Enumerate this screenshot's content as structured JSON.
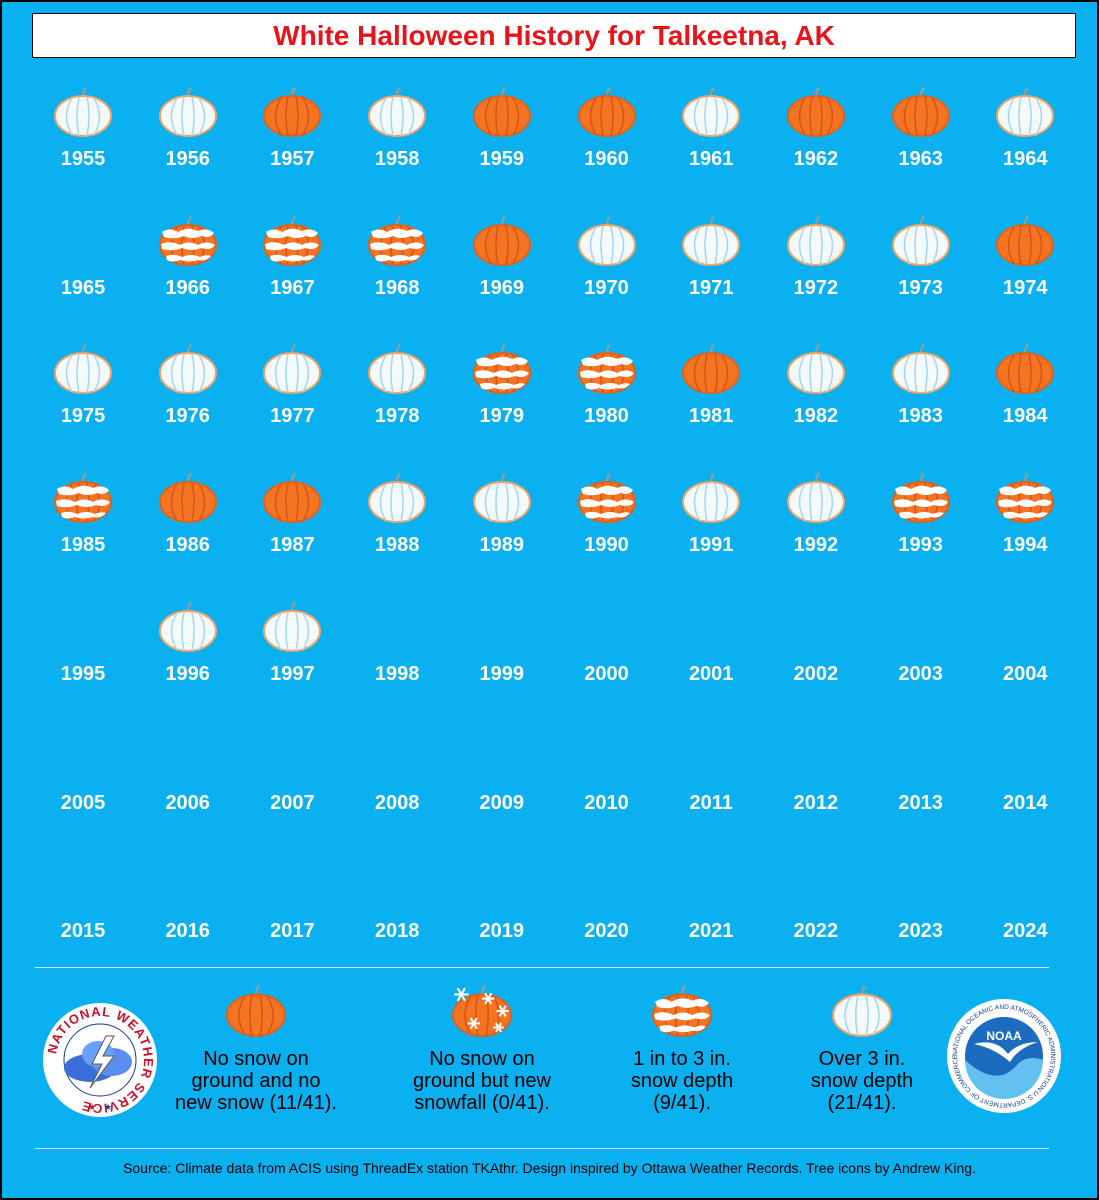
{
  "title": "White Halloween History for Talkeetna, AK",
  "colors": {
    "background": "#0AB0F0",
    "title_text": "#E8141B",
    "pumpkin_orange": "#F47421",
    "pumpkin_white": "#F4F9FC"
  },
  "years": [
    {
      "year": "1955",
      "category": "over3"
    },
    {
      "year": "1956",
      "category": "over3"
    },
    {
      "year": "1957",
      "category": "none"
    },
    {
      "year": "1958",
      "category": "over3"
    },
    {
      "year": "1959",
      "category": "none"
    },
    {
      "year": "1960",
      "category": "none"
    },
    {
      "year": "1961",
      "category": "over3"
    },
    {
      "year": "1962",
      "category": "none"
    },
    {
      "year": "1963",
      "category": "none"
    },
    {
      "year": "1964",
      "category": "over3"
    },
    {
      "year": "1965",
      "category": "missing"
    },
    {
      "year": "1966",
      "category": "1to3"
    },
    {
      "year": "1967",
      "category": "1to3"
    },
    {
      "year": "1968",
      "category": "1to3"
    },
    {
      "year": "1969",
      "category": "none"
    },
    {
      "year": "1970",
      "category": "over3"
    },
    {
      "year": "1971",
      "category": "over3"
    },
    {
      "year": "1972",
      "category": "over3"
    },
    {
      "year": "1973",
      "category": "over3"
    },
    {
      "year": "1974",
      "category": "none"
    },
    {
      "year": "1975",
      "category": "over3"
    },
    {
      "year": "1976",
      "category": "over3"
    },
    {
      "year": "1977",
      "category": "over3"
    },
    {
      "year": "1978",
      "category": "over3"
    },
    {
      "year": "1979",
      "category": "1to3"
    },
    {
      "year": "1980",
      "category": "1to3"
    },
    {
      "year": "1981",
      "category": "none"
    },
    {
      "year": "1982",
      "category": "over3"
    },
    {
      "year": "1983",
      "category": "over3"
    },
    {
      "year": "1984",
      "category": "none"
    },
    {
      "year": "1985",
      "category": "1to3"
    },
    {
      "year": "1986",
      "category": "none"
    },
    {
      "year": "1987",
      "category": "none"
    },
    {
      "year": "1988",
      "category": "over3"
    },
    {
      "year": "1989",
      "category": "over3"
    },
    {
      "year": "1990",
      "category": "1to3"
    },
    {
      "year": "1991",
      "category": "over3"
    },
    {
      "year": "1992",
      "category": "over3"
    },
    {
      "year": "1993",
      "category": "1to3"
    },
    {
      "year": "1994",
      "category": "1to3"
    },
    {
      "year": "1995",
      "category": "missing"
    },
    {
      "year": "1996",
      "category": "over3"
    },
    {
      "year": "1997",
      "category": "over3"
    },
    {
      "year": "1998",
      "category": "missing"
    },
    {
      "year": "1999",
      "category": "missing"
    },
    {
      "year": "2000",
      "category": "missing"
    },
    {
      "year": "2001",
      "category": "missing"
    },
    {
      "year": "2002",
      "category": "missing"
    },
    {
      "year": "2003",
      "category": "missing"
    },
    {
      "year": "2004",
      "category": "missing"
    },
    {
      "year": "2005",
      "category": "missing"
    },
    {
      "year": "2006",
      "category": "missing"
    },
    {
      "year": "2007",
      "category": "missing"
    },
    {
      "year": "2008",
      "category": "missing"
    },
    {
      "year": "2009",
      "category": "missing"
    },
    {
      "year": "2010",
      "category": "missing"
    },
    {
      "year": "2011",
      "category": "missing"
    },
    {
      "year": "2012",
      "category": "missing"
    },
    {
      "year": "2013",
      "category": "missing"
    },
    {
      "year": "2014",
      "category": "missing"
    },
    {
      "year": "2015",
      "category": "missing"
    },
    {
      "year": "2016",
      "category": "missing"
    },
    {
      "year": "2017",
      "category": "missing"
    },
    {
      "year": "2018",
      "category": "missing"
    },
    {
      "year": "2019",
      "category": "missing"
    },
    {
      "year": "2020",
      "category": "missing"
    },
    {
      "year": "2021",
      "category": "missing"
    },
    {
      "year": "2022",
      "category": "missing"
    },
    {
      "year": "2023",
      "category": "missing"
    },
    {
      "year": "2024",
      "category": "missing"
    }
  ],
  "legend": [
    {
      "category": "none",
      "icon": "orange-pumpkin-icon",
      "lines": [
        "No snow on",
        "ground and no",
        "new snow (11/41)."
      ]
    },
    {
      "category": "newsnow",
      "icon": "snowflake-pumpkin-icon",
      "lines": [
        "No snow on",
        "ground but new",
        "snowfall (0/41)."
      ]
    },
    {
      "category": "1to3",
      "icon": "striped-pumpkin-icon",
      "lines": [
        "1 in to 3 in.",
        "snow depth",
        "(9/41)."
      ]
    },
    {
      "category": "over3",
      "icon": "white-pumpkin-icon",
      "lines": [
        "Over 3 in.",
        "snow depth",
        "(21/41)."
      ]
    }
  ],
  "logos": {
    "nws_text": "NATIONAL WEATHER SERVICE",
    "noaa_center": "NOAA",
    "noaa_ring": "NATIONAL OCEANIC AND ATMOSPHERIC ADMINISTRATION U.S. DEPARTMENT OF COMMERCE"
  },
  "source": "Source: Climate data from ACIS using ThreadEx station TKAthr. Design inspired by Ottawa Weather Records. Tree icons by Andrew King."
}
